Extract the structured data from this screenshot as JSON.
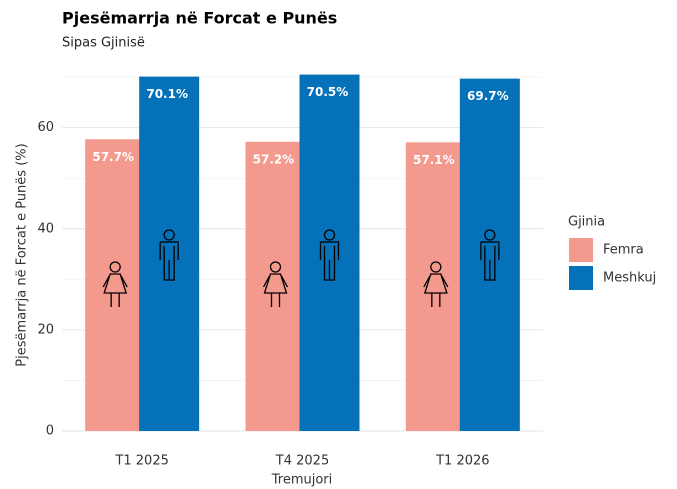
{
  "chart_data": {
    "type": "bar",
    "title": "Pjesëmarrja në Forcat e Punës",
    "subtitle": "Sipas Gjinisë",
    "x_label": "Tremujori",
    "y_label": "Pjesëmarrja në Forcat e Punës (%)",
    "categories": [
      "T1 2025",
      "T4 2025",
      "T1 2026"
    ],
    "series": [
      {
        "name": "Femra",
        "color": "#f4998d",
        "values": [
          57.7,
          57.2,
          57.1
        ],
        "value_labels": [
          "57.7%",
          "57.2%",
          "57.1%"
        ]
      },
      {
        "name": "Meshkuj",
        "color": "#0571b9",
        "values": [
          70.1,
          70.5,
          69.7
        ],
        "value_labels": [
          "70.1%",
          "70.5%",
          "69.7%"
        ]
      }
    ],
    "legend_title": "Gjinia",
    "legend": "right",
    "ylim": [
      0,
      72
    ],
    "yticks": [
      0,
      20,
      40,
      60
    ],
    "minor_yticks": [
      10,
      30,
      50,
      70
    ],
    "grid": true
  }
}
